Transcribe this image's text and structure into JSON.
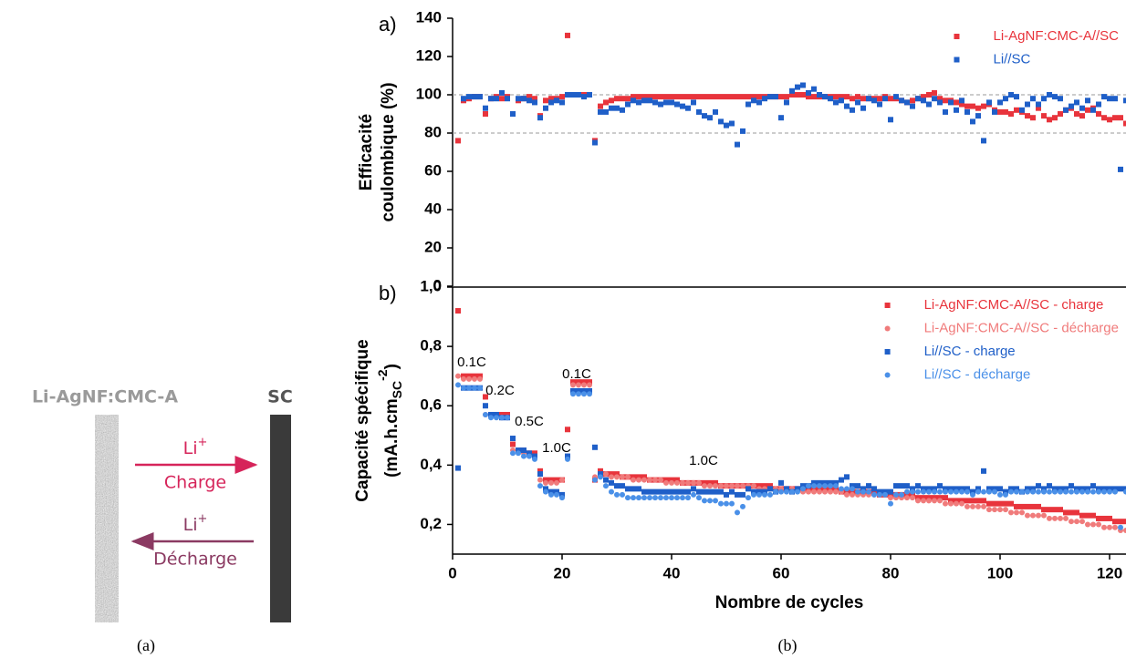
{
  "diagram": {
    "electrode_left": "Li-AgNF:CMC-A",
    "electrode_right": "SC",
    "arrows": [
      {
        "ion": "Li",
        "charge_sign": "+",
        "label": "Charge"
      },
      {
        "ion": "Li",
        "charge_sign": "+",
        "label": "Décharge"
      }
    ]
  },
  "captions": [
    "(a)",
    "(b)"
  ],
  "chart_data": [
    {
      "type": "scatter",
      "panel_label": "a)",
      "ylabel": [
        "Efficacité",
        "coulombique (%)"
      ],
      "xlim": [
        0,
        123
      ],
      "ylim": [
        0,
        140
      ],
      "yticks": [
        0,
        20,
        40,
        60,
        80,
        100,
        120,
        140
      ],
      "reference_lines": [
        80,
        100
      ],
      "legend": "upper right",
      "x": [
        1,
        2,
        3,
        4,
        5,
        6,
        7,
        8,
        9,
        10,
        11,
        12,
        13,
        14,
        15,
        16,
        17,
        18,
        19,
        20,
        21,
        22,
        23,
        24,
        25,
        26,
        27,
        28,
        29,
        30,
        31,
        32,
        33,
        34,
        35,
        36,
        37,
        38,
        39,
        40,
        41,
        42,
        43,
        44,
        45,
        46,
        47,
        48,
        49,
        50,
        51,
        52,
        53,
        54,
        55,
        56,
        57,
        58,
        59,
        60,
        61,
        62,
        63,
        64,
        65,
        66,
        67,
        68,
        69,
        70,
        71,
        72,
        73,
        74,
        75,
        76,
        77,
        78,
        79,
        80,
        81,
        82,
        83,
        84,
        85,
        86,
        87,
        88,
        89,
        90,
        91,
        92,
        93,
        94,
        95,
        96,
        97,
        98,
        99,
        100,
        101,
        102,
        103,
        104,
        105,
        106,
        107,
        108,
        109,
        110,
        111,
        112,
        113,
        114,
        115,
        116,
        117,
        118,
        119,
        120,
        121,
        122,
        123
      ],
      "series": [
        {
          "name": "Li-AgNF:CMC-A//SC",
          "color": "#e8343c",
          "marker": "square",
          "values": [
            76,
            97,
            98,
            99,
            99,
            90,
            98,
            99,
            98,
            99,
            90,
            97,
            98,
            99,
            98,
            89,
            97,
            98,
            98,
            99,
            131,
            100,
            100,
            100,
            100,
            76,
            94,
            96,
            97,
            98,
            98,
            98,
            99,
            99,
            99,
            99,
            99,
            99,
            99,
            99,
            99,
            99,
            99,
            99,
            99,
            99,
            99,
            99,
            99,
            99,
            99,
            99,
            99,
            99,
            99,
            99,
            99,
            99,
            99,
            99,
            99,
            100,
            100,
            100,
            99,
            99,
            99,
            99,
            99,
            99,
            99,
            99,
            98,
            99,
            98,
            98,
            98,
            98,
            99,
            98,
            98,
            97,
            96,
            97,
            98,
            99,
            100,
            101,
            98,
            97,
            97,
            96,
            95,
            94,
            94,
            93,
            94,
            95,
            92,
            91,
            91,
            90,
            92,
            91,
            89,
            88,
            93,
            89,
            87,
            88,
            90,
            92,
            93,
            90,
            89,
            92,
            93,
            90,
            88,
            87,
            88,
            88,
            85
          ]
        },
        {
          "name": "Li//SC",
          "color": "#1f5fc8",
          "marker": "square",
          "values": [
            null,
            98,
            99,
            99,
            99,
            93,
            98,
            98,
            101,
            98,
            90,
            98,
            98,
            97,
            96,
            88,
            93,
            96,
            97,
            96,
            100,
            100,
            100,
            99,
            100,
            75,
            91,
            91,
            93,
            93,
            92,
            95,
            97,
            96,
            97,
            97,
            96,
            95,
            96,
            96,
            95,
            94,
            93,
            96,
            91,
            89,
            88,
            91,
            86,
            84,
            85,
            74,
            81,
            95,
            97,
            96,
            98,
            99,
            99,
            88,
            96,
            102,
            104,
            105,
            101,
            103,
            100,
            99,
            98,
            96,
            97,
            94,
            92,
            96,
            93,
            98,
            97,
            95,
            98,
            87,
            99,
            97,
            96,
            94,
            98,
            97,
            95,
            98,
            96,
            91,
            96,
            92,
            97,
            91,
            86,
            89,
            76,
            96,
            91,
            96,
            98,
            100,
            99,
            92,
            95,
            98,
            95,
            98,
            100,
            99,
            98,
            92,
            94,
            96,
            93,
            97,
            92,
            95,
            99,
            98,
            98,
            61,
            97
          ]
        }
      ]
    },
    {
      "type": "scatter",
      "panel_label": "b)",
      "ylabel": {
        "line1": "Capacité spécifique",
        "line2": "(mA.h.cm",
        "sub": "SC",
        "sup": "-2",
        "close": ")"
      },
      "xlabel": "Nombre de cycles",
      "xlim": [
        0,
        123
      ],
      "ylim": [
        0.1,
        1.0
      ],
      "xticks": [
        0,
        20,
        40,
        60,
        80,
        100,
        120
      ],
      "yticks": [
        {
          "value": 0.2,
          "label": "0,2"
        },
        {
          "value": 0.4,
          "label": "0,4"
        },
        {
          "value": 0.6,
          "label": "0,6"
        },
        {
          "value": 0.8,
          "label": "0,8"
        },
        {
          "value": 1.0,
          "label": "1,0"
        }
      ],
      "legend": "upper right",
      "annotations": [
        "0.1C",
        "0.2C",
        "0.5C",
        "1.0C",
        "0.1C",
        "1.0C"
      ],
      "x": [
        1,
        2,
        3,
        4,
        5,
        6,
        7,
        8,
        9,
        10,
        11,
        12,
        13,
        14,
        15,
        16,
        17,
        18,
        19,
        20,
        21,
        22,
        23,
        24,
        25,
        26,
        27,
        28,
        29,
        30,
        31,
        32,
        33,
        34,
        35,
        36,
        37,
        38,
        39,
        40,
        41,
        42,
        43,
        44,
        45,
        46,
        47,
        48,
        49,
        50,
        51,
        52,
        53,
        54,
        55,
        56,
        57,
        58,
        59,
        60,
        61,
        62,
        63,
        64,
        65,
        66,
        67,
        68,
        69,
        70,
        71,
        72,
        73,
        74,
        75,
        76,
        77,
        78,
        79,
        80,
        81,
        82,
        83,
        84,
        85,
        86,
        87,
        88,
        89,
        90,
        91,
        92,
        93,
        94,
        95,
        96,
        97,
        98,
        99,
        100,
        101,
        102,
        103,
        104,
        105,
        106,
        107,
        108,
        109,
        110,
        111,
        112,
        113,
        114,
        115,
        116,
        117,
        118,
        119,
        120,
        121,
        122,
        123
      ],
      "series": [
        {
          "name": "Li-AgNF:CMC-A//SC - charge",
          "color": "#e8343c",
          "marker": "square",
          "values": [
            0.92,
            0.7,
            0.7,
            0.7,
            0.7,
            0.63,
            0.57,
            0.57,
            0.57,
            0.57,
            0.47,
            0.45,
            0.45,
            0.44,
            0.44,
            0.38,
            0.35,
            0.35,
            0.35,
            0.35,
            0.52,
            0.68,
            0.68,
            0.68,
            0.68,
            0.35,
            0.38,
            0.37,
            0.37,
            0.37,
            0.36,
            0.36,
            0.36,
            0.36,
            0.36,
            0.35,
            0.35,
            0.35,
            0.35,
            0.35,
            0.35,
            0.34,
            0.34,
            0.34,
            0.34,
            0.34,
            0.34,
            0.34,
            0.33,
            0.33,
            0.33,
            0.33,
            0.33,
            0.33,
            0.33,
            0.33,
            0.33,
            0.33,
            0.32,
            0.32,
            0.32,
            0.32,
            0.32,
            0.32,
            0.32,
            0.32,
            0.32,
            0.32,
            0.32,
            0.32,
            0.31,
            0.31,
            0.31,
            0.31,
            0.31,
            0.31,
            0.31,
            0.3,
            0.3,
            0.3,
            0.3,
            0.3,
            0.3,
            0.3,
            0.29,
            0.29,
            0.29,
            0.29,
            0.29,
            0.29,
            0.28,
            0.28,
            0.28,
            0.28,
            0.28,
            0.28,
            0.28,
            0.27,
            0.27,
            0.27,
            0.27,
            0.27,
            0.26,
            0.26,
            0.26,
            0.26,
            0.26,
            0.25,
            0.25,
            0.25,
            0.25,
            0.24,
            0.24,
            0.24,
            0.23,
            0.23,
            0.23,
            0.22,
            0.22,
            0.22,
            0.21,
            0.21,
            0.21
          ]
        },
        {
          "name": "Li-AgNF:CMC-A//SC - décharge",
          "color": "#f07b7b",
          "marker": "circle",
          "values": [
            0.7,
            0.69,
            0.69,
            0.69,
            0.69,
            0.57,
            0.57,
            0.57,
            0.56,
            0.56,
            0.45,
            0.45,
            0.44,
            0.44,
            0.43,
            0.35,
            0.34,
            0.34,
            0.34,
            0.35,
            0.43,
            0.67,
            0.67,
            0.67,
            0.67,
            0.36,
            0.37,
            0.37,
            0.36,
            0.36,
            0.36,
            0.36,
            0.35,
            0.35,
            0.35,
            0.35,
            0.35,
            0.35,
            0.34,
            0.34,
            0.34,
            0.34,
            0.34,
            0.34,
            0.34,
            0.33,
            0.33,
            0.33,
            0.33,
            0.33,
            0.33,
            0.33,
            0.33,
            0.33,
            0.33,
            0.32,
            0.32,
            0.32,
            0.32,
            0.32,
            0.32,
            0.32,
            0.32,
            0.31,
            0.31,
            0.31,
            0.31,
            0.31,
            0.31,
            0.31,
            0.31,
            0.3,
            0.3,
            0.3,
            0.3,
            0.3,
            0.3,
            0.3,
            0.3,
            0.29,
            0.29,
            0.29,
            0.29,
            0.29,
            0.28,
            0.28,
            0.28,
            0.28,
            0.28,
            0.27,
            0.27,
            0.27,
            0.27,
            0.26,
            0.26,
            0.26,
            0.26,
            0.25,
            0.25,
            0.25,
            0.25,
            0.24,
            0.24,
            0.24,
            0.23,
            0.23,
            0.23,
            0.23,
            0.22,
            0.22,
            0.22,
            0.22,
            0.21,
            0.21,
            0.21,
            0.2,
            0.2,
            0.2,
            0.19,
            0.19,
            0.19,
            0.18,
            0.18
          ]
        },
        {
          "name": "Li//SC - charge",
          "color": "#1f5fc8",
          "marker": "square",
          "values": [
            0.39,
            0.66,
            0.66,
            0.66,
            0.66,
            0.6,
            0.57,
            0.57,
            0.56,
            0.56,
            0.49,
            0.45,
            0.45,
            0.44,
            0.43,
            0.37,
            0.32,
            0.31,
            0.31,
            0.3,
            0.43,
            0.65,
            0.65,
            0.65,
            0.65,
            0.46,
            0.37,
            0.35,
            0.34,
            0.33,
            0.33,
            0.32,
            0.32,
            0.32,
            0.31,
            0.31,
            0.31,
            0.31,
            0.31,
            0.31,
            0.31,
            0.31,
            0.31,
            0.32,
            0.31,
            0.31,
            0.31,
            0.31,
            0.31,
            0.3,
            0.31,
            0.3,
            0.3,
            0.32,
            0.31,
            0.31,
            0.31,
            0.32,
            0.31,
            0.34,
            0.32,
            0.31,
            0.32,
            0.33,
            0.33,
            0.34,
            0.34,
            0.34,
            0.34,
            0.34,
            0.35,
            0.36,
            0.33,
            0.33,
            0.32,
            0.33,
            0.32,
            0.31,
            0.31,
            0.31,
            0.33,
            0.33,
            0.33,
            0.32,
            0.33,
            0.32,
            0.32,
            0.32,
            0.33,
            0.32,
            0.32,
            0.32,
            0.32,
            0.32,
            0.31,
            0.32,
            0.38,
            0.32,
            0.32,
            0.32,
            0.31,
            0.32,
            0.32,
            0.31,
            0.32,
            0.32,
            0.33,
            0.32,
            0.33,
            0.32,
            0.32,
            0.32,
            0.33,
            0.32,
            0.32,
            0.32,
            0.33,
            0.32,
            0.32,
            0.32,
            0.32,
            0.32,
            0.32
          ]
        },
        {
          "name": "Li//SC - décharge",
          "color": "#4a90e8",
          "marker": "circle",
          "values": [
            0.67,
            0.66,
            0.66,
            0.66,
            0.66,
            0.57,
            0.56,
            0.56,
            0.56,
            0.56,
            0.44,
            0.44,
            0.43,
            0.43,
            0.42,
            0.33,
            0.31,
            0.3,
            0.3,
            0.29,
            0.42,
            0.64,
            0.64,
            0.64,
            0.64,
            0.35,
            0.36,
            0.33,
            0.31,
            0.3,
            0.3,
            0.29,
            0.29,
            0.29,
            0.29,
            0.29,
            0.29,
            0.29,
            0.29,
            0.29,
            0.29,
            0.29,
            0.29,
            0.3,
            0.29,
            0.28,
            0.28,
            0.28,
            0.27,
            0.27,
            0.27,
            0.24,
            0.26,
            0.29,
            0.3,
            0.3,
            0.3,
            0.3,
            0.31,
            0.31,
            0.31,
            0.31,
            0.31,
            0.32,
            0.33,
            0.33,
            0.33,
            0.33,
            0.33,
            0.33,
            0.32,
            0.32,
            0.32,
            0.31,
            0.31,
            0.31,
            0.3,
            0.3,
            0.3,
            0.27,
            0.3,
            0.3,
            0.31,
            0.31,
            0.31,
            0.31,
            0.31,
            0.31,
            0.31,
            0.31,
            0.31,
            0.31,
            0.31,
            0.31,
            0.3,
            0.31,
            0.31,
            0.31,
            0.31,
            0.3,
            0.3,
            0.31,
            0.31,
            0.31,
            0.31,
            0.31,
            0.31,
            0.31,
            0.31,
            0.31,
            0.31,
            0.31,
            0.31,
            0.31,
            0.31,
            0.31,
            0.31,
            0.31,
            0.31,
            0.31,
            0.31,
            0.19,
            0.31
          ]
        }
      ]
    }
  ]
}
